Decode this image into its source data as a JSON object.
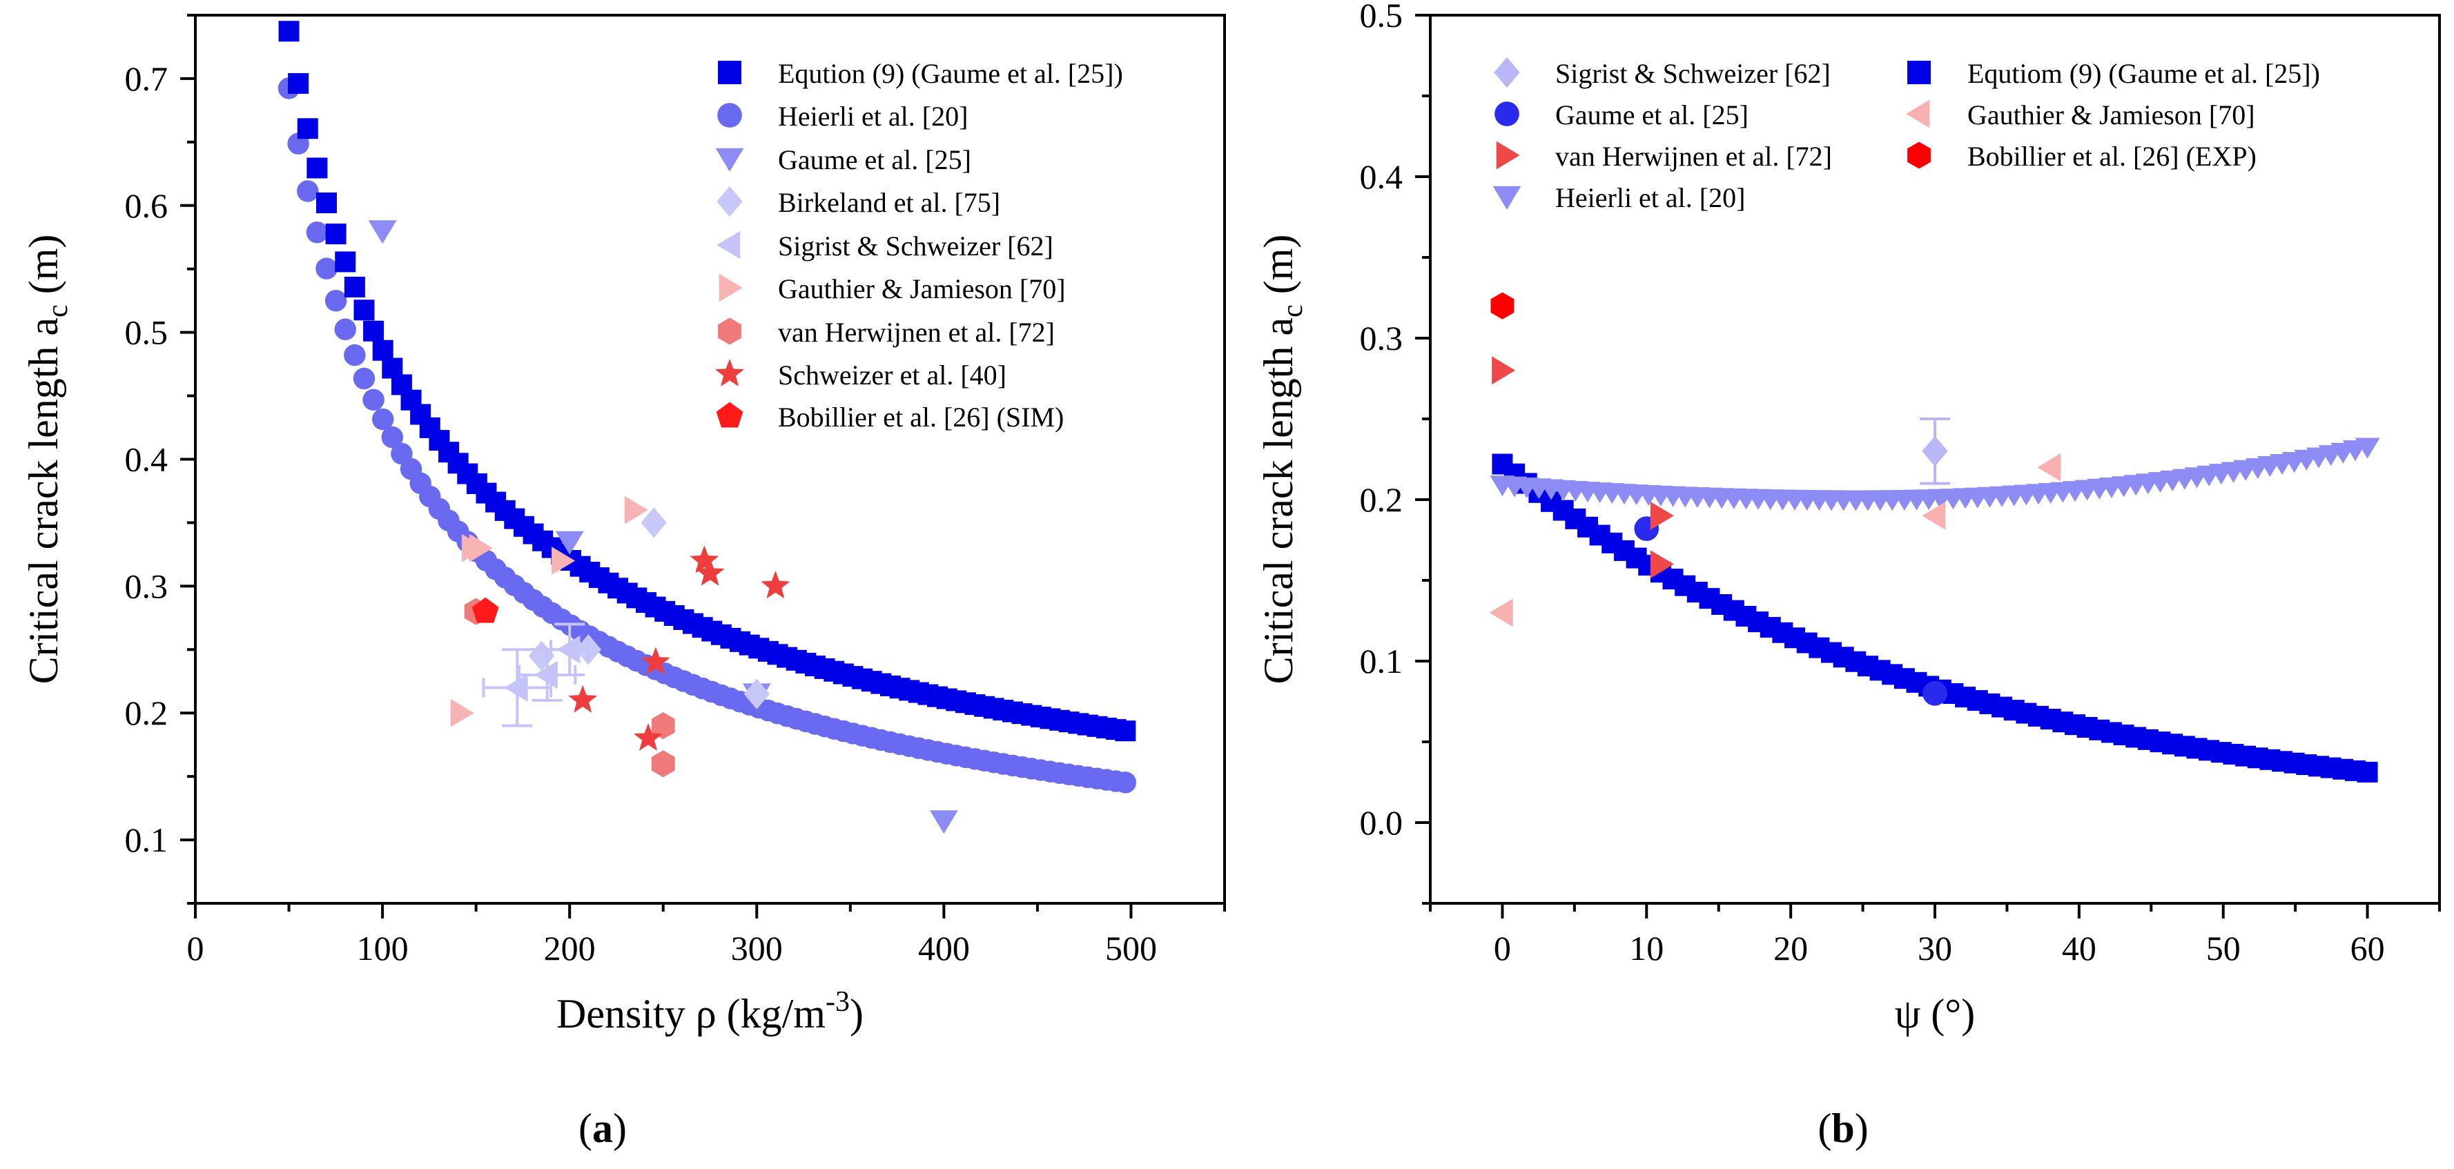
{
  "chart_data": [
    {
      "panel_label": "(a)",
      "type": "scatter",
      "xlabel": "Density ρ (kg/m⁻³)",
      "ylabel": "Critical crack length a_c (m)",
      "xlim": [
        0,
        550
      ],
      "ylim": [
        0.05,
        0.75
      ],
      "xticks": [
        0,
        100,
        200,
        300,
        400,
        500
      ],
      "xtick_labels": [
        "0",
        "100",
        "200",
        "300",
        "400",
        "500"
      ],
      "yticks": [
        0.1,
        0.2,
        0.3,
        0.4,
        0.5,
        0.6,
        0.7
      ],
      "ytick_labels": [
        "0.1",
        "0.2",
        "0.3",
        "0.4",
        "0.5",
        "0.6",
        "0.7"
      ],
      "legend_position": "top-right",
      "series": [
        {
          "name": "Eqution (9) (Gaume et al. [25])",
          "marker": "square",
          "color": "#0000e6",
          "curve": {
            "form": "a*x^b",
            "a": 7.71,
            "b": -0.6,
            "x_start": 50,
            "x_end": 497,
            "n": 90
          }
        },
        {
          "name": "Heierli et al. [20]",
          "marker": "circle",
          "color": "#6a6af0",
          "curve": {
            "form": "a*x^b",
            "a": 9.9,
            "b": -0.68,
            "x_start": 50,
            "x_end": 497,
            "n": 90
          }
        },
        {
          "name": "Gaume et al. [25]",
          "marker": "triangle-down",
          "color": "#8c8cf4",
          "x": [
            100,
            200,
            300,
            400
          ],
          "y": [
            0.58,
            0.335,
            0.215,
            0.115
          ]
        },
        {
          "name": "Birkeland et al. [75]",
          "marker": "diamond",
          "color": "#c8c8f8",
          "x": [
            185,
            210,
            245,
            300
          ],
          "y": [
            0.245,
            0.25,
            0.35,
            0.215
          ]
        },
        {
          "name": "Sigrist & Schweizer [62]",
          "marker": "triangle-left",
          "color": "#c4c4f8",
          "x": [
            172,
            188,
            200
          ],
          "y": [
            0.22,
            0.23,
            0.25
          ],
          "xerr": [
            18,
            15,
            10
          ],
          "yerr": [
            0.03,
            0.02,
            0.02
          ]
        },
        {
          "name": "Gauthier & Jamieson [70]",
          "marker": "triangle-right",
          "color": "#f8b4b4",
          "x": [
            142,
            148,
            152,
            196,
            235
          ],
          "y": [
            0.2,
            0.33,
            0.33,
            0.32,
            0.36
          ]
        },
        {
          "name": "van Herwijnen et al. [72]",
          "marker": "hexagon",
          "color": "#f07a7a",
          "x": [
            150,
            250,
            250
          ],
          "y": [
            0.28,
            0.19,
            0.16
          ]
        },
        {
          "name": "Schweizer et al. [40]",
          "marker": "star",
          "color": "#ee3d3d",
          "x": [
            207,
            242,
            246,
            272,
            275,
            310
          ],
          "y": [
            0.21,
            0.18,
            0.24,
            0.32,
            0.31,
            0.3
          ]
        },
        {
          "name": "Bobillier et al. [26] (SIM)",
          "marker": "pentagon",
          "color": "#ff1a1a",
          "x": [
            155
          ],
          "y": [
            0.28
          ]
        }
      ]
    },
    {
      "panel_label": "(b)",
      "type": "scatter",
      "xlabel": "ψ (°)",
      "ylabel": "Critical crack length a_c (m)",
      "xlim": [
        -5,
        65
      ],
      "ylim": [
        -0.05,
        0.5
      ],
      "xticks": [
        0,
        10,
        20,
        30,
        40,
        50,
        60
      ],
      "xtick_labels": [
        "0",
        "10",
        "20",
        "30",
        "40",
        "50",
        "60"
      ],
      "yticks": [
        0.0,
        0.1,
        0.2,
        0.3,
        0.4,
        0.5
      ],
      "ytick_labels": [
        "0.0",
        "0.1",
        "0.2",
        "0.3",
        "0.4",
        "0.5"
      ],
      "legend_position": "top",
      "series": [
        {
          "name": "Sigrist & Schweizer [62]",
          "marker": "diamond",
          "color": "#b8b8f8",
          "x": [
            30
          ],
          "y": [
            0.23
          ],
          "yerr": [
            0.02
          ]
        },
        {
          "name": "Gaume et al. [25]",
          "marker": "circle",
          "color": "#2a2aee",
          "x": [
            10,
            30
          ],
          "y": [
            0.182,
            0.08
          ]
        },
        {
          "name": "van Herwijnen et al. [72]",
          "marker": "triangle-right",
          "color": "#f04848",
          "x": [
            0,
            11,
            11
          ],
          "y": [
            0.28,
            0.19,
            0.16
          ]
        },
        {
          "name": "Heierli et al. [20]",
          "marker": "triangle-down",
          "color": "#8c8cf4",
          "curve": {
            "form": "c+k*(x-x0)^2",
            "c": 0.2,
            "k": 2.65e-05,
            "x0": 25,
            "x_start": 0,
            "x_end": 60,
            "n": 72
          }
        },
        {
          "name": "Equtiom (9) (Gaume et al. [25])",
          "display_name": "Equtiom (9) (Gaume et al. [25])",
          "marker": "square",
          "color": "#0000e6",
          "curve": {
            "form": "a*exp(-x/t)",
            "a": 0.222,
            "t": 30.6,
            "x_start": 0,
            "x_end": 60,
            "n": 72
          }
        },
        {
          "name": "Gauthier & Jamieson [70]",
          "marker": "triangle-left",
          "color": "#f8b0b0",
          "x": [
            0,
            30,
            38
          ],
          "y": [
            0.13,
            0.19,
            0.22
          ]
        },
        {
          "name": "Bobillier et al. [26] (EXP)",
          "marker": "hexagon",
          "color": "#ff0000",
          "x": [
            0
          ],
          "y": [
            0.32
          ]
        }
      ]
    }
  ]
}
